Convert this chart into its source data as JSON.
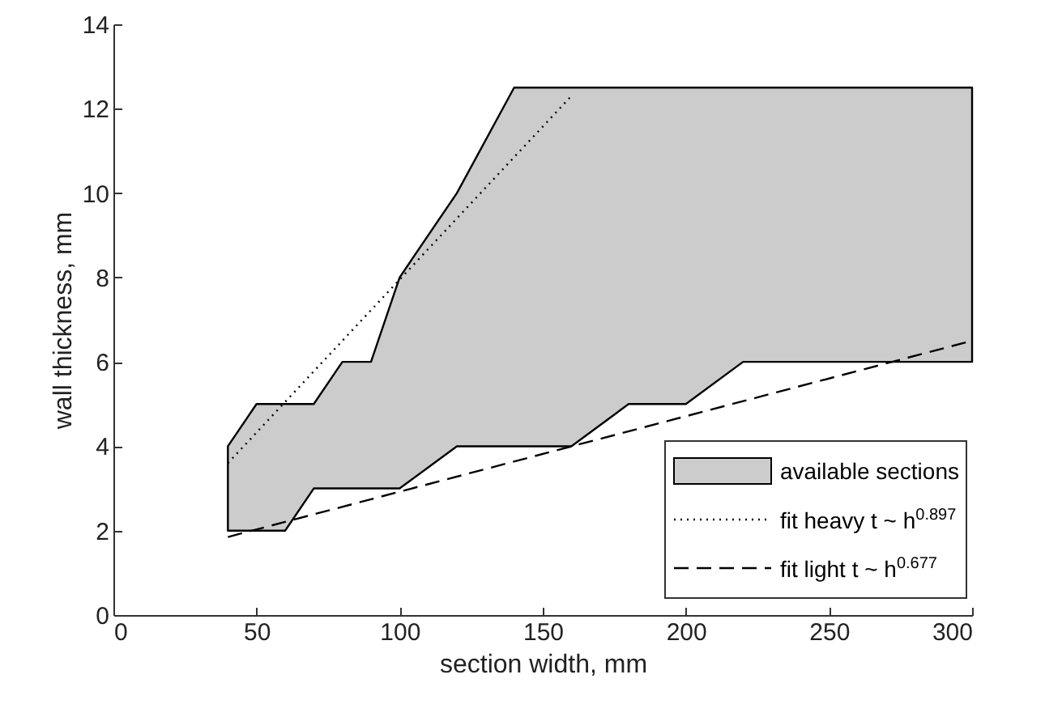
{
  "chart_data": {
    "type": "line",
    "xlabel": "section width, mm",
    "ylabel": "wall thickness, mm",
    "xlim": [
      0,
      300
    ],
    "ylim": [
      0,
      14
    ],
    "xticks": [
      0,
      50,
      100,
      150,
      200,
      250,
      300
    ],
    "yticks": [
      0,
      2,
      4,
      6,
      8,
      10,
      12,
      14
    ],
    "grid": false,
    "legend": "bottom right",
    "series": [
      {
        "name": "available sections",
        "color": "#cccccc",
        "x": [
          40,
          50,
          60,
          70,
          80,
          90,
          100,
          120,
          140,
          160,
          180,
          200,
          220,
          300
        ],
        "values": [
          null,
          null,
          null,
          null,
          null,
          null,
          null,
          null,
          null,
          null,
          null,
          null,
          null,
          null
        ],
        "upper": [
          4,
          5,
          5,
          5,
          6,
          6,
          8,
          10,
          12.5,
          12.5,
          12.5,
          12.5,
          12.5,
          12.5
        ],
        "lower": [
          2,
          2,
          2,
          3,
          3,
          3,
          3,
          4,
          4,
          4,
          5,
          5,
          6,
          6
        ]
      },
      {
        "name": "fit heavy t ~ h$^{0.897}$",
        "color": "#000000",
        "line_style": "dotted",
        "x": [
          40,
          160
        ],
        "values": [
          3.6,
          12.3
        ]
      },
      {
        "name": "fit light t ~ h$^{0.677}$",
        "color": "#000000",
        "line_style": "dashed",
        "x": [
          40,
          300
        ],
        "values": [
          1.85,
          6.5
        ]
      }
    ]
  }
}
